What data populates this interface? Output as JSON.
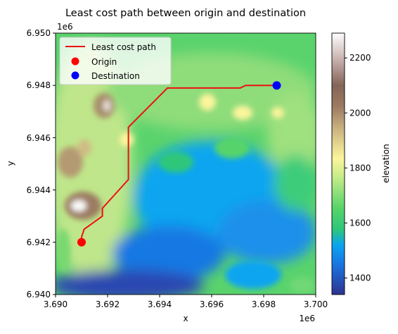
{
  "chart_data": {
    "type": "heatmap",
    "title": "Least cost path between origin and destination",
    "xlabel": "x",
    "ylabel": "y",
    "x_multiplier": "1e6",
    "y_multiplier": "1e6",
    "xlim": [
      3.69,
      3.7
    ],
    "ylim": [
      6.94,
      6.95
    ],
    "x_ticks": [
      "3.690",
      "3.692",
      "3.694",
      "3.696",
      "3.698",
      "3.700"
    ],
    "y_ticks": [
      "6.940",
      "6.942",
      "6.944",
      "6.946",
      "6.948",
      "6.950"
    ],
    "colorbar": {
      "label": "elevation",
      "range": [
        1340,
        2290
      ],
      "ticks": [
        "1400",
        "1600",
        "1800",
        "2000",
        "2200"
      ],
      "colormap": "terrain"
    },
    "legend": {
      "placement": "top-left",
      "entries": [
        {
          "label": "Least cost path",
          "color": "#ee1111",
          "marker": "line"
        },
        {
          "label": "Origin",
          "color": "#ff0000",
          "marker": "circle"
        },
        {
          "label": "Destination",
          "color": "#0000ff",
          "marker": "circle"
        }
      ]
    },
    "path": [
      [
        3.691,
        6.942
      ],
      [
        3.691,
        6.9422
      ],
      [
        3.6911,
        6.9425
      ],
      [
        3.6918,
        6.943
      ],
      [
        3.6918,
        6.9433
      ],
      [
        3.6928,
        6.9444
      ],
      [
        3.6928,
        6.9464
      ],
      [
        3.6943,
        6.9479
      ],
      [
        3.6971,
        6.9479
      ],
      [
        3.6973,
        6.948
      ],
      [
        3.6985,
        6.948
      ]
    ],
    "origin": [
      3.691,
      6.942
    ],
    "destination": [
      3.6985,
      6.948
    ]
  }
}
